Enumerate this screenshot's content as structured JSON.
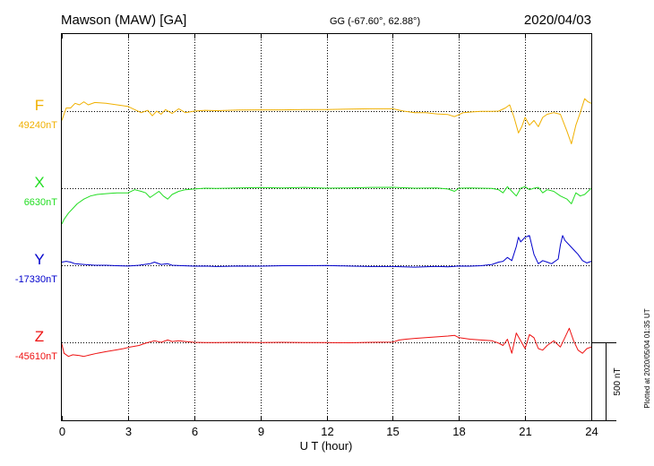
{
  "header": {
    "station": "Mawson (MAW)  [GA]",
    "coords": "GG (-67.60°,  62.88°)",
    "date": "2020/04/03"
  },
  "footer": {
    "plotted": "Plotted at 2020/05/04 01:35 UT"
  },
  "chart_data": {
    "type": "line",
    "xlabel": "U T (hour)",
    "xlim": [
      0,
      24
    ],
    "xticks": [
      0,
      3,
      6,
      9,
      12,
      15,
      18,
      21,
      24
    ],
    "scale_bar": {
      "label": "500 nT",
      "nT": 500
    },
    "colors": {
      "F": "#f0b000",
      "X": "#22dd22",
      "Y": "#0000cc",
      "Z": "#ee1111"
    },
    "series": [
      {
        "name": "F",
        "baseline_label": "49240nT",
        "baseline": 49240,
        "points": [
          [
            0,
            49180
          ],
          [
            0.2,
            49260
          ],
          [
            0.4,
            49260
          ],
          [
            0.6,
            49290
          ],
          [
            0.8,
            49280
          ],
          [
            1.0,
            49300
          ],
          [
            1.2,
            49280
          ],
          [
            1.5,
            49295
          ],
          [
            2.0,
            49290
          ],
          [
            2.5,
            49280
          ],
          [
            3.0,
            49270
          ],
          [
            3.3,
            49250
          ],
          [
            3.6,
            49230
          ],
          [
            3.9,
            49245
          ],
          [
            4.1,
            49210
          ],
          [
            4.3,
            49240
          ],
          [
            4.5,
            49220
          ],
          [
            4.7,
            49250
          ],
          [
            5.0,
            49225
          ],
          [
            5.3,
            49255
          ],
          [
            5.6,
            49230
          ],
          [
            6.0,
            49240
          ],
          [
            6.5,
            49245
          ],
          [
            7.0,
            49243
          ],
          [
            8.0,
            49247
          ],
          [
            9.0,
            49248
          ],
          [
            10.0,
            49248
          ],
          [
            11.0,
            49250
          ],
          [
            12.0,
            49250
          ],
          [
            13.0,
            49253
          ],
          [
            14.0,
            49255
          ],
          [
            15.0,
            49255
          ],
          [
            15.5,
            49240
          ],
          [
            16.0,
            49230
          ],
          [
            16.5,
            49230
          ],
          [
            17.0,
            49222
          ],
          [
            17.5,
            49218
          ],
          [
            17.8,
            49205
          ],
          [
            18.2,
            49230
          ],
          [
            18.6,
            49235
          ],
          [
            19.0,
            49238
          ],
          [
            19.5,
            49238
          ],
          [
            19.8,
            49240
          ],
          [
            20.1,
            49260
          ],
          [
            20.3,
            49280
          ],
          [
            20.5,
            49200
          ],
          [
            20.7,
            49100
          ],
          [
            20.85,
            49140
          ],
          [
            21.0,
            49200
          ],
          [
            21.2,
            49150
          ],
          [
            21.4,
            49180
          ],
          [
            21.6,
            49140
          ],
          [
            21.8,
            49200
          ],
          [
            22.0,
            49220
          ],
          [
            22.3,
            49230
          ],
          [
            22.6,
            49220
          ],
          [
            22.9,
            49110
          ],
          [
            23.1,
            49030
          ],
          [
            23.3,
            49150
          ],
          [
            23.5,
            49230
          ],
          [
            23.7,
            49320
          ],
          [
            23.85,
            49300
          ],
          [
            24.0,
            49290
          ]
        ]
      },
      {
        "name": "X",
        "baseline_label": "6630nT",
        "baseline": 6630,
        "points": [
          [
            0,
            6400
          ],
          [
            0.1,
            6430
          ],
          [
            0.3,
            6470
          ],
          [
            0.5,
            6500
          ],
          [
            0.7,
            6530
          ],
          [
            1.0,
            6560
          ],
          [
            1.3,
            6580
          ],
          [
            1.6,
            6590
          ],
          [
            2.0,
            6595
          ],
          [
            2.5,
            6600
          ],
          [
            3.0,
            6600
          ],
          [
            3.3,
            6620
          ],
          [
            3.6,
            6610
          ],
          [
            3.8,
            6600
          ],
          [
            4.0,
            6570
          ],
          [
            4.2,
            6590
          ],
          [
            4.4,
            6610
          ],
          [
            4.6,
            6580
          ],
          [
            4.8,
            6560
          ],
          [
            5.0,
            6590
          ],
          [
            5.3,
            6610
          ],
          [
            5.6,
            6620
          ],
          [
            6.0,
            6625
          ],
          [
            6.5,
            6630
          ],
          [
            7.0,
            6628
          ],
          [
            8.0,
            6632
          ],
          [
            9.0,
            6634
          ],
          [
            10.0,
            6631
          ],
          [
            11.0,
            6635
          ],
          [
            12.0,
            6630
          ],
          [
            13.0,
            6632
          ],
          [
            14.0,
            6635
          ],
          [
            15.0,
            6636
          ],
          [
            16.0,
            6630
          ],
          [
            17.0,
            6632
          ],
          [
            17.5,
            6625
          ],
          [
            17.8,
            6610
          ],
          [
            18.0,
            6630
          ],
          [
            18.5,
            6632
          ],
          [
            19.0,
            6630
          ],
          [
            19.5,
            6628
          ],
          [
            19.8,
            6620
          ],
          [
            20.0,
            6600
          ],
          [
            20.2,
            6640
          ],
          [
            20.4,
            6610
          ],
          [
            20.6,
            6580
          ],
          [
            20.8,
            6630
          ],
          [
            21.0,
            6640
          ],
          [
            21.2,
            6620
          ],
          [
            21.4,
            6630
          ],
          [
            21.6,
            6635
          ],
          [
            21.8,
            6600
          ],
          [
            22.0,
            6620
          ],
          [
            22.3,
            6610
          ],
          [
            22.6,
            6580
          ],
          [
            22.9,
            6560
          ],
          [
            23.1,
            6530
          ],
          [
            23.3,
            6600
          ],
          [
            23.5,
            6580
          ],
          [
            23.7,
            6590
          ],
          [
            24.0,
            6630
          ]
        ]
      },
      {
        "name": "Y",
        "baseline_label": "-17330nT",
        "baseline": -17330,
        "points": [
          [
            0,
            -17310
          ],
          [
            0.2,
            -17305
          ],
          [
            0.4,
            -17310
          ],
          [
            0.6,
            -17320
          ],
          [
            1.0,
            -17325
          ],
          [
            1.5,
            -17330
          ],
          [
            2.0,
            -17330
          ],
          [
            2.5,
            -17333
          ],
          [
            3.0,
            -17335
          ],
          [
            3.5,
            -17330
          ],
          [
            4.0,
            -17320
          ],
          [
            4.2,
            -17310
          ],
          [
            4.5,
            -17325
          ],
          [
            4.8,
            -17320
          ],
          [
            5.0,
            -17330
          ],
          [
            5.5,
            -17333
          ],
          [
            6.0,
            -17336
          ],
          [
            6.5,
            -17335
          ],
          [
            7.0,
            -17338
          ],
          [
            8.0,
            -17335
          ],
          [
            9.0,
            -17336
          ],
          [
            10.0,
            -17333
          ],
          [
            11.0,
            -17333
          ],
          [
            12.0,
            -17331
          ],
          [
            13.0,
            -17335
          ],
          [
            14.0,
            -17338
          ],
          [
            15.0,
            -17338
          ],
          [
            16.0,
            -17342
          ],
          [
            17.0,
            -17337
          ],
          [
            17.5,
            -17340
          ],
          [
            18.0,
            -17335
          ],
          [
            18.5,
            -17336
          ],
          [
            19.0,
            -17333
          ],
          [
            19.5,
            -17325
          ],
          [
            19.8,
            -17310
          ],
          [
            20.0,
            -17305
          ],
          [
            20.2,
            -17280
          ],
          [
            20.4,
            -17300
          ],
          [
            20.6,
            -17210
          ],
          [
            20.7,
            -17150
          ],
          [
            20.8,
            -17180
          ],
          [
            21.0,
            -17150
          ],
          [
            21.2,
            -17140
          ],
          [
            21.4,
            -17260
          ],
          [
            21.6,
            -17320
          ],
          [
            21.8,
            -17300
          ],
          [
            22.0,
            -17310
          ],
          [
            22.2,
            -17320
          ],
          [
            22.5,
            -17290
          ],
          [
            22.6,
            -17200
          ],
          [
            22.7,
            -17140
          ],
          [
            22.8,
            -17170
          ],
          [
            23.0,
            -17200
          ],
          [
            23.2,
            -17230
          ],
          [
            23.4,
            -17260
          ],
          [
            23.6,
            -17300
          ],
          [
            23.8,
            -17315
          ],
          [
            24.0,
            -17305
          ]
        ]
      },
      {
        "name": "Z",
        "baseline_label": "-45610nT",
        "baseline": -45610,
        "points": [
          [
            0,
            -45620
          ],
          [
            0.1,
            -45680
          ],
          [
            0.3,
            -45700
          ],
          [
            0.5,
            -45690
          ],
          [
            0.8,
            -45695
          ],
          [
            1.0,
            -45700
          ],
          [
            1.3,
            -45690
          ],
          [
            1.6,
            -45680
          ],
          [
            2.0,
            -45670
          ],
          [
            2.4,
            -45660
          ],
          [
            2.8,
            -45650
          ],
          [
            3.1,
            -45640
          ],
          [
            3.5,
            -45630
          ],
          [
            3.8,
            -45615
          ],
          [
            4.2,
            -45600
          ],
          [
            4.5,
            -45610
          ],
          [
            4.8,
            -45595
          ],
          [
            5.0,
            -45605
          ],
          [
            5.3,
            -45600
          ],
          [
            5.6,
            -45605
          ],
          [
            6.0,
            -45610
          ],
          [
            6.5,
            -45612
          ],
          [
            7.0,
            -45612
          ],
          [
            8.0,
            -45610
          ],
          [
            9.0,
            -45611
          ],
          [
            10.0,
            -45610
          ],
          [
            11.0,
            -45611
          ],
          [
            12.0,
            -45612
          ],
          [
            13.0,
            -45613
          ],
          [
            14.0,
            -45610
          ],
          [
            15.0,
            -45608
          ],
          [
            15.3,
            -45595
          ],
          [
            15.6,
            -45590
          ],
          [
            16.0,
            -45585
          ],
          [
            16.5,
            -45580
          ],
          [
            17.0,
            -45575
          ],
          [
            17.5,
            -45570
          ],
          [
            17.8,
            -45565
          ],
          [
            18.0,
            -45580
          ],
          [
            18.5,
            -45590
          ],
          [
            19.0,
            -45595
          ],
          [
            19.5,
            -45600
          ],
          [
            19.8,
            -45615
          ],
          [
            20.0,
            -45630
          ],
          [
            20.2,
            -45590
          ],
          [
            20.4,
            -45680
          ],
          [
            20.6,
            -45550
          ],
          [
            20.8,
            -45600
          ],
          [
            21.0,
            -45650
          ],
          [
            21.2,
            -45560
          ],
          [
            21.4,
            -45580
          ],
          [
            21.6,
            -45650
          ],
          [
            21.8,
            -45660
          ],
          [
            22.0,
            -45630
          ],
          [
            22.3,
            -45600
          ],
          [
            22.6,
            -45640
          ],
          [
            22.8,
            -45580
          ],
          [
            23.0,
            -45520
          ],
          [
            23.2,
            -45600
          ],
          [
            23.4,
            -45660
          ],
          [
            23.6,
            -45680
          ],
          [
            23.8,
            -45650
          ],
          [
            24.0,
            -45640
          ]
        ]
      }
    ]
  }
}
